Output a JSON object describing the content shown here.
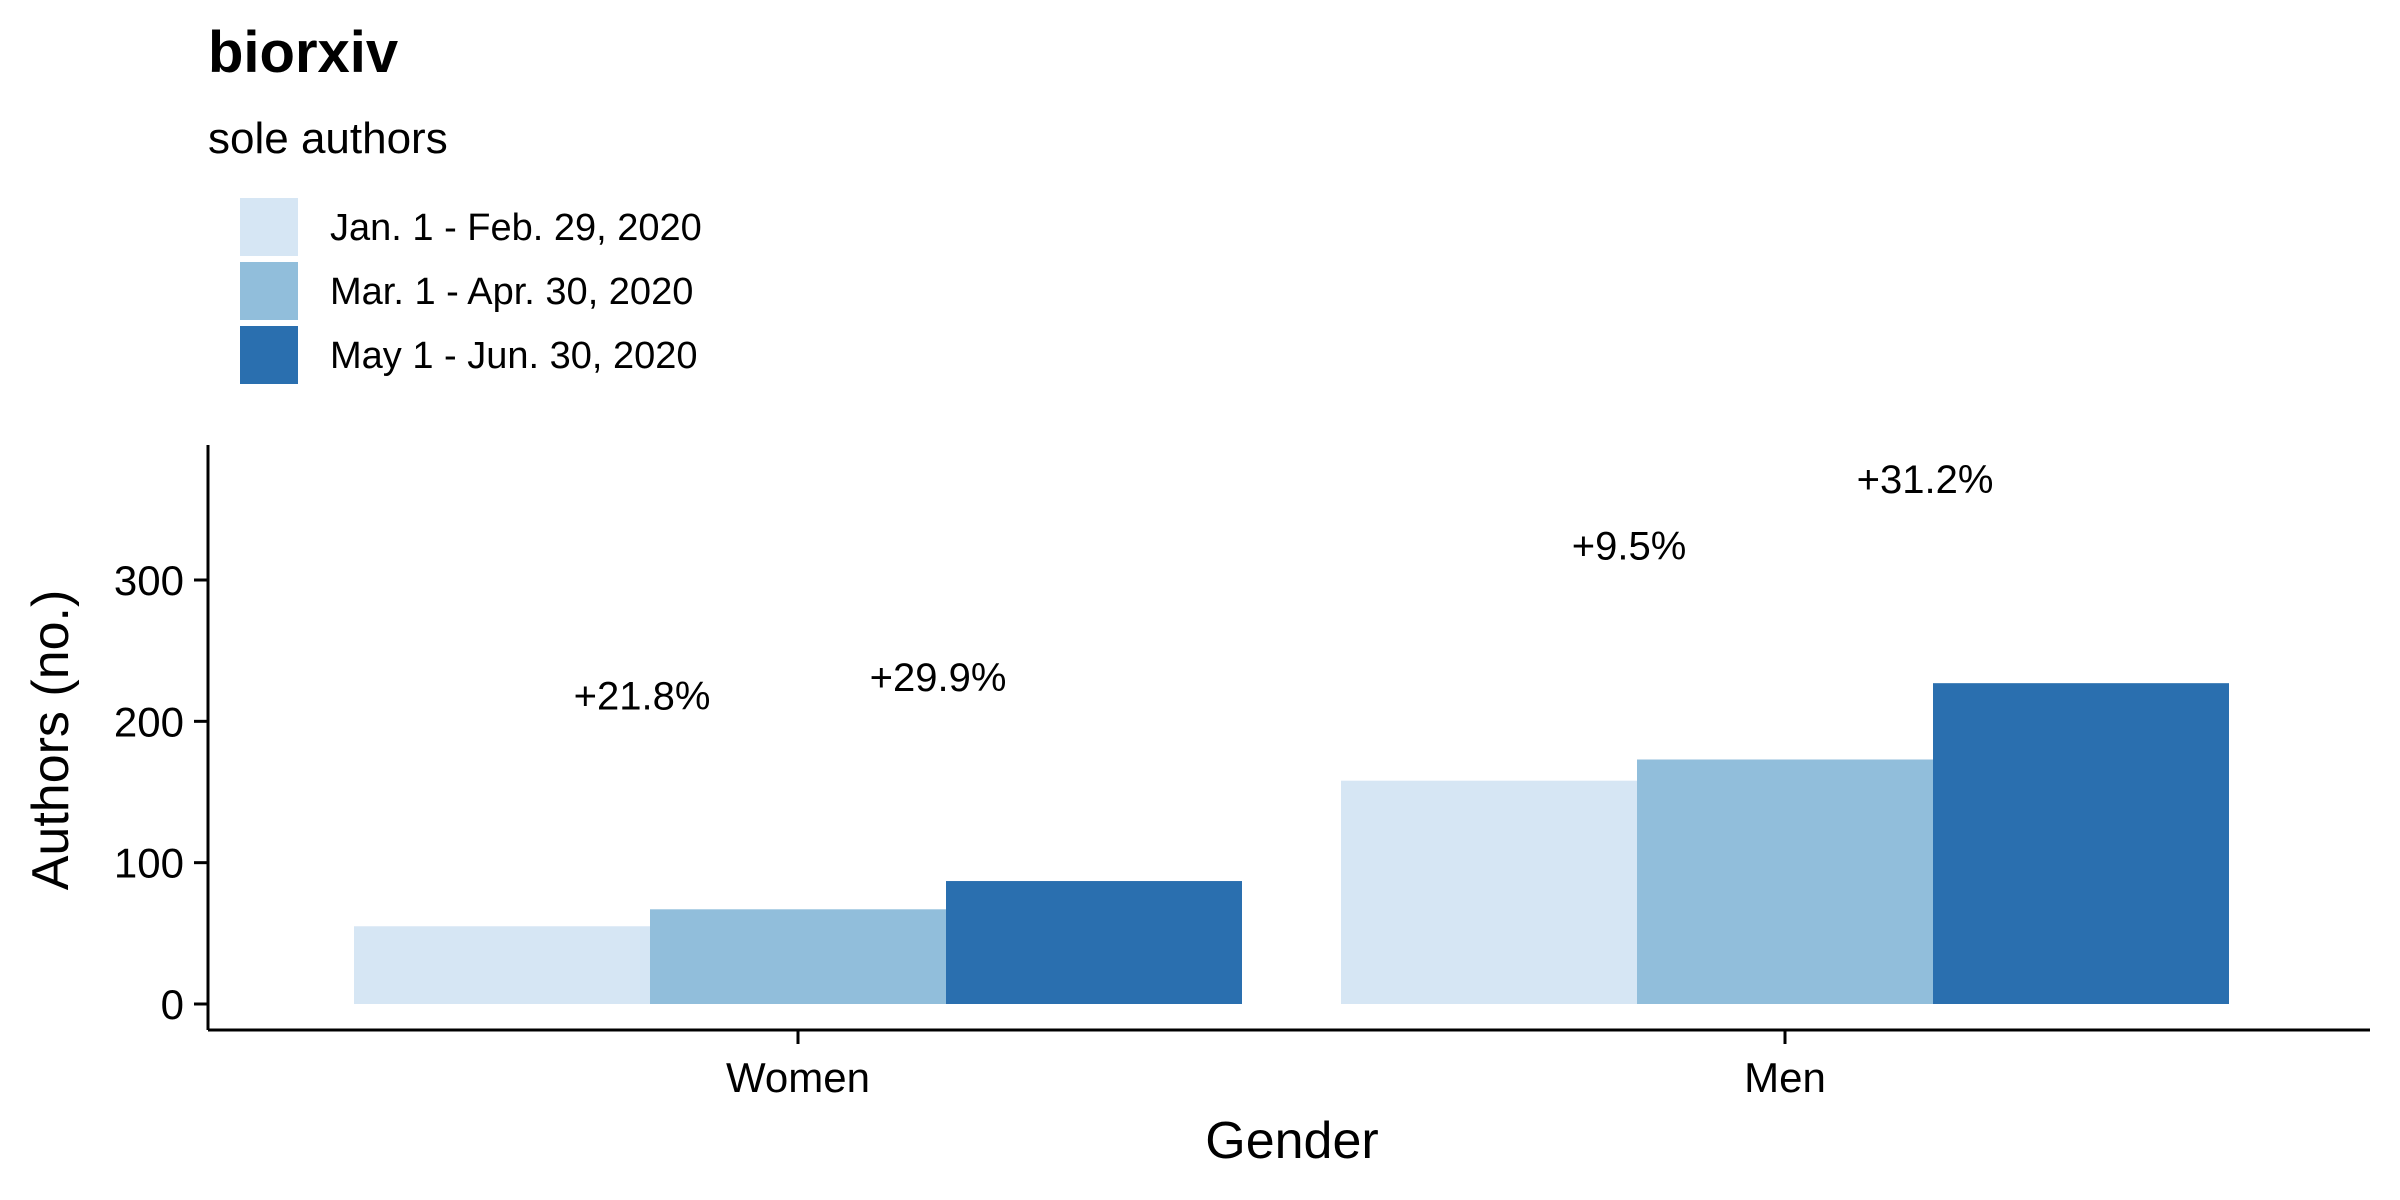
{
  "chart_data": {
    "type": "bar",
    "title": "biorxiv",
    "subtitle": "sole authors",
    "xlabel": "Gender",
    "ylabel": "Authors (no.)",
    "categories": [
      "Women",
      "Men"
    ],
    "ylim": [
      0,
      385
    ],
    "yticks": [
      0,
      100,
      200,
      300
    ],
    "grid": false,
    "legend_position": "top-left",
    "series": [
      {
        "name": "Jan. 1 - Feb. 29, 2020",
        "color": "#D6E6F4",
        "values": [
          55,
          158
        ],
        "labels": [
          "",
          ""
        ]
      },
      {
        "name": "Mar. 1 - Apr. 30, 2020",
        "color": "#91BEDB",
        "values": [
          67,
          173
        ],
        "labels": [
          "+21.8%",
          "+9.5%"
        ]
      },
      {
        "name": "May 1 - Jun. 30, 2020",
        "color": "#2A6FAF",
        "values": [
          87,
          227
        ],
        "labels": [
          "+29.9%",
          "+31.2%"
        ]
      }
    ]
  }
}
